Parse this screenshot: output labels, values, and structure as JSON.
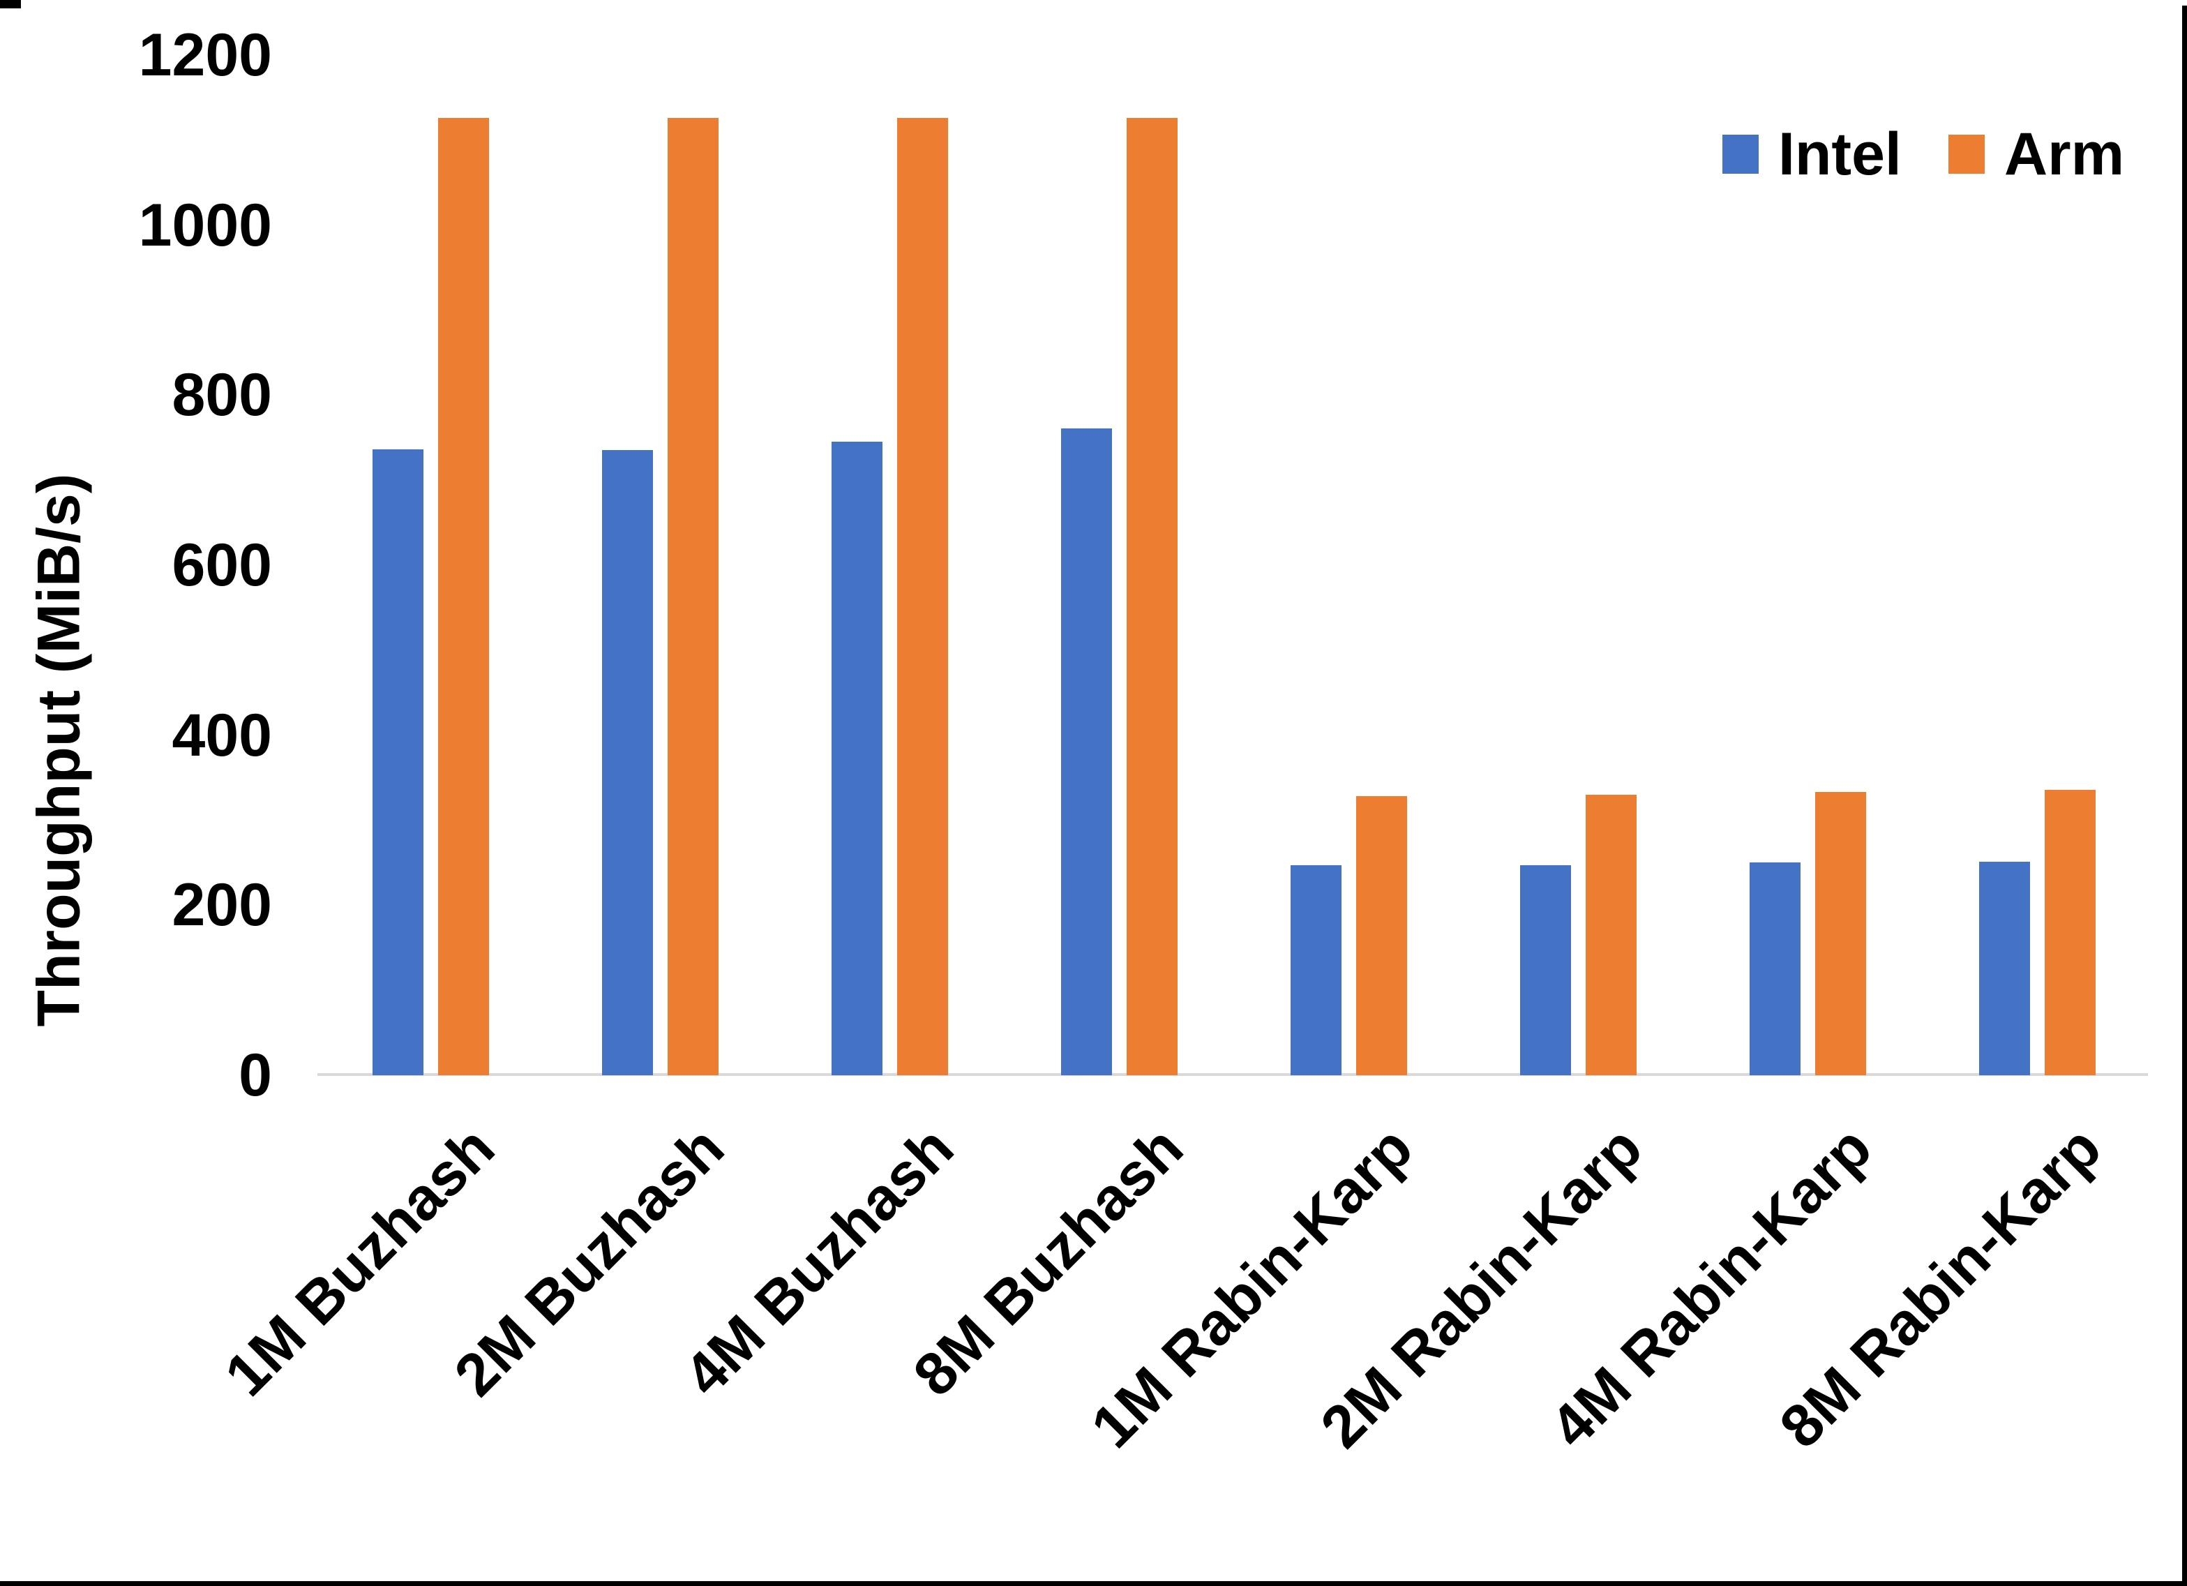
{
  "chart_data": {
    "type": "bar",
    "title": "",
    "xlabel": "",
    "ylabel": "Throughput (MiB/s)",
    "categories": [
      "1M Buzhash",
      "2M Buzhash",
      "4M Buzhash",
      "8M Buzhash",
      "1M Rabin-Karp",
      "2M Rabin-Karp",
      "4M Rabin-Karp",
      "8M Rabin-Karp"
    ],
    "series": [
      {
        "name": "Intel",
        "color": "#4472C4",
        "values": [
          736,
          735,
          745,
          761,
          247,
          247,
          250,
          251
        ]
      },
      {
        "name": "Arm",
        "color": "#ED7D31",
        "values": [
          1126,
          1126,
          1126,
          1126,
          328,
          330,
          333,
          336
        ]
      }
    ],
    "ylim": [
      0,
      1200
    ],
    "y_ticks": [
      0,
      200,
      400,
      600,
      800,
      1000,
      1200
    ],
    "grid": false,
    "legend_position": "top-right",
    "legend_entries": [
      "Intel",
      "Arm"
    ],
    "colors": {
      "intel_bar": "#4472C4",
      "arm_bar": "#ED7D31",
      "axis_line": "#D9D9D9",
      "text": "#000000",
      "background": "#FFFFFF"
    }
  }
}
